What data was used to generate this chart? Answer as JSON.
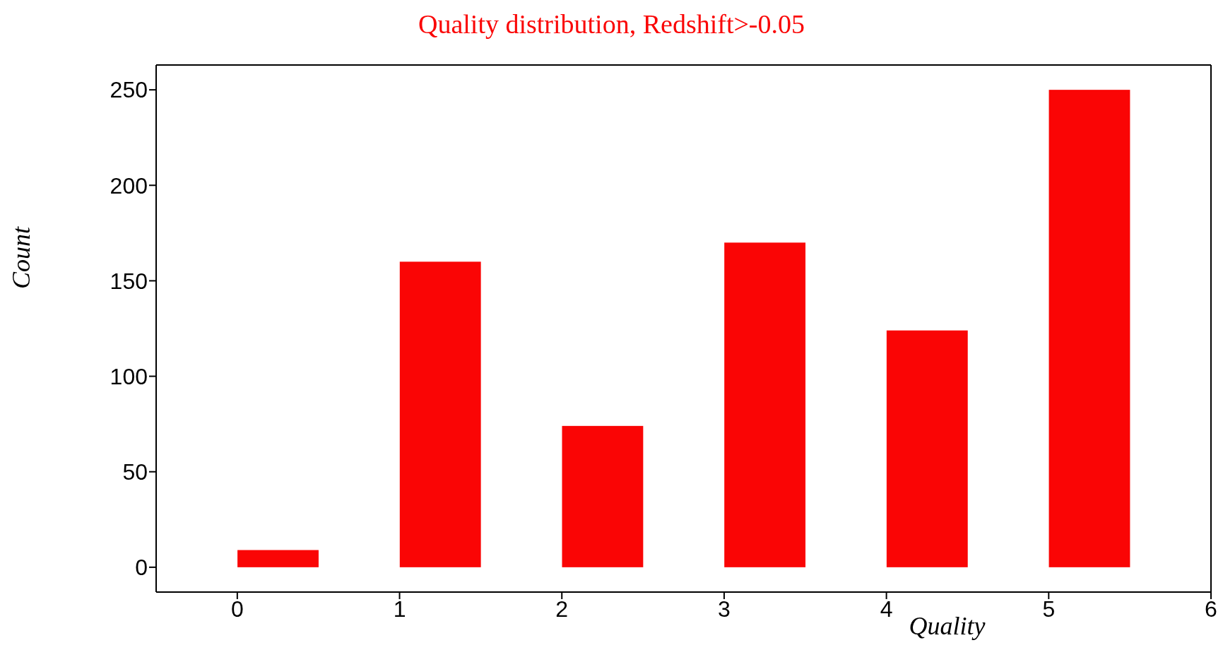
{
  "chart_data": {
    "type": "histogram",
    "title": "Quality distribution, Redshift>-0.05",
    "xlabel": "Quality",
    "ylabel": "Count",
    "bins": [
      0,
      0.5,
      1,
      1.5,
      2,
      2.5,
      3,
      3.5,
      4,
      4.5,
      5,
      5.5
    ],
    "values": [
      9,
      0,
      160,
      0,
      74,
      0,
      170,
      0,
      124,
      0,
      250
    ],
    "color": "#fa0505",
    "xlim": [
      -0.5,
      6
    ],
    "xticks": [
      0,
      1,
      2,
      3,
      4,
      5,
      6
    ],
    "ylim": [
      -13,
      263
    ],
    "yticks": [
      0,
      50,
      100,
      150,
      200,
      250
    ],
    "grid": false
  }
}
